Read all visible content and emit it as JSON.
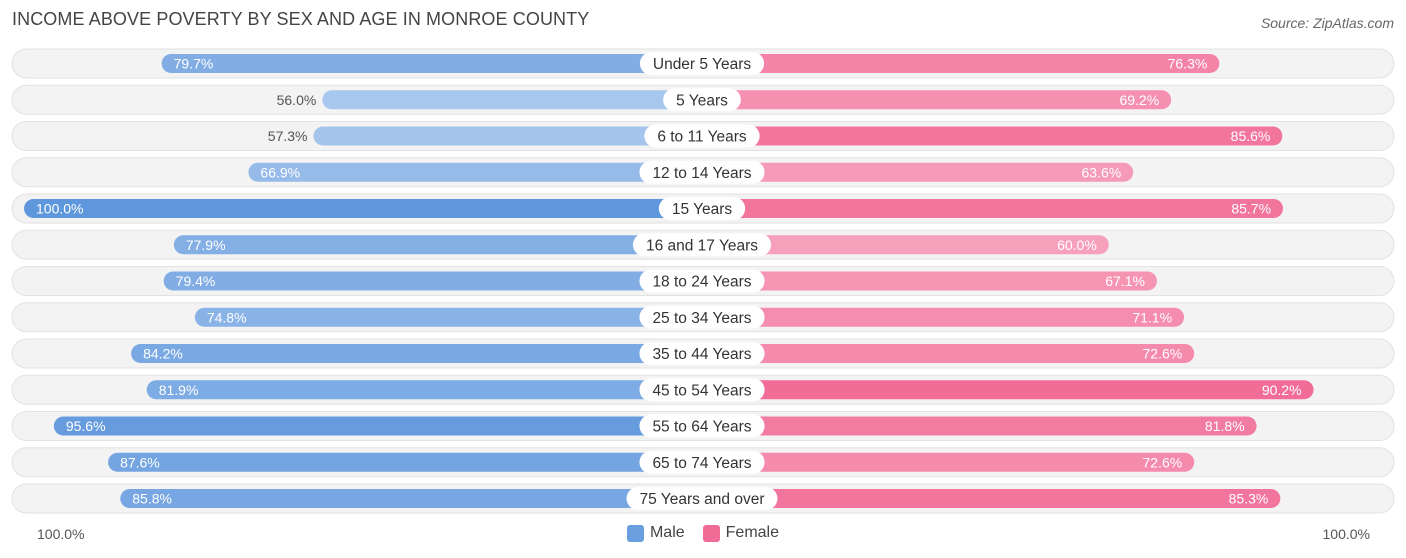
{
  "title": "INCOME ABOVE POVERTY BY SEX AND AGE IN MONROE COUNTY",
  "source": "Source: ZipAtlas.com",
  "axis": {
    "left_label": "100.0%",
    "right_label": "100.0%"
  },
  "legend": [
    {
      "name": "Male",
      "color": "#6a9fdf"
    },
    {
      "name": "Female",
      "color": "#f06b95"
    }
  ],
  "chart_data": {
    "type": "bar",
    "orientation": "horizontal-diverging",
    "title": "INCOME ABOVE POVERTY BY SEX AND AGE IN MONROE COUNTY",
    "xlim": [
      -100,
      100
    ],
    "categories": [
      "Under 5 Years",
      "5 Years",
      "6 to 11 Years",
      "12 to 14 Years",
      "15 Years",
      "16 and 17 Years",
      "18 to 24 Years",
      "25 to 34 Years",
      "35 to 44 Years",
      "45 to 54 Years",
      "55 to 64 Years",
      "65 to 74 Years",
      "75 Years and over"
    ],
    "series": [
      {
        "name": "Male",
        "values": [
          79.7,
          56.0,
          57.3,
          66.9,
          100.0,
          77.9,
          79.4,
          74.8,
          84.2,
          81.9,
          95.6,
          87.6,
          85.8
        ],
        "labels": [
          "79.7%",
          "56.0%",
          "57.3%",
          "66.9%",
          "100.0%",
          "77.9%",
          "79.4%",
          "74.8%",
          "84.2%",
          "81.9%",
          "95.6%",
          "87.6%",
          "85.8%"
        ]
      },
      {
        "name": "Female",
        "values": [
          76.3,
          69.2,
          85.6,
          63.6,
          85.7,
          60.0,
          67.1,
          71.1,
          72.6,
          90.2,
          81.8,
          72.6,
          85.3
        ],
        "labels": [
          "76.3%",
          "69.2%",
          "85.6%",
          "63.6%",
          "85.7%",
          "60.0%",
          "67.1%",
          "71.1%",
          "72.6%",
          "90.2%",
          "81.8%",
          "72.6%",
          "85.3%"
        ]
      }
    ]
  }
}
